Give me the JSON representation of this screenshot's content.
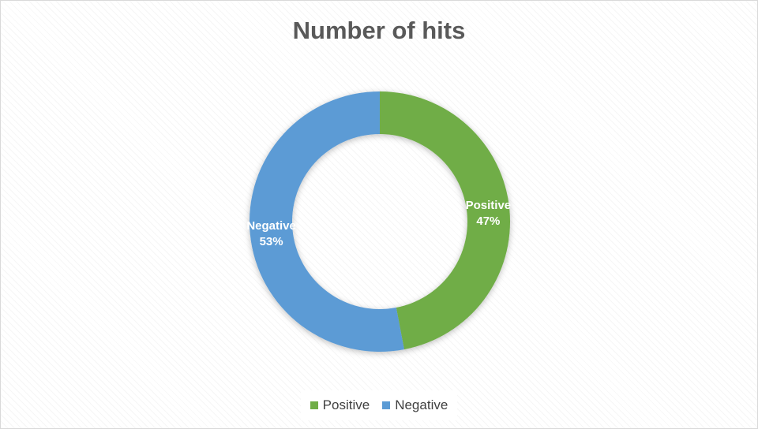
{
  "chart_data": {
    "type": "pie",
    "subtype": "doughnut",
    "title": "Number of hits",
    "slices": [
      {
        "label": "Positive",
        "value": 47,
        "value_label": "47%",
        "color": "#70ad47"
      },
      {
        "label": "Negative",
        "value": 53,
        "value_label": "53%",
        "color": "#5b9bd5"
      }
    ],
    "legend": {
      "position": "bottom",
      "items": [
        {
          "label": "Positive",
          "color": "#70ad47"
        },
        {
          "label": "Negative",
          "color": "#5b9bd5"
        }
      ]
    }
  }
}
